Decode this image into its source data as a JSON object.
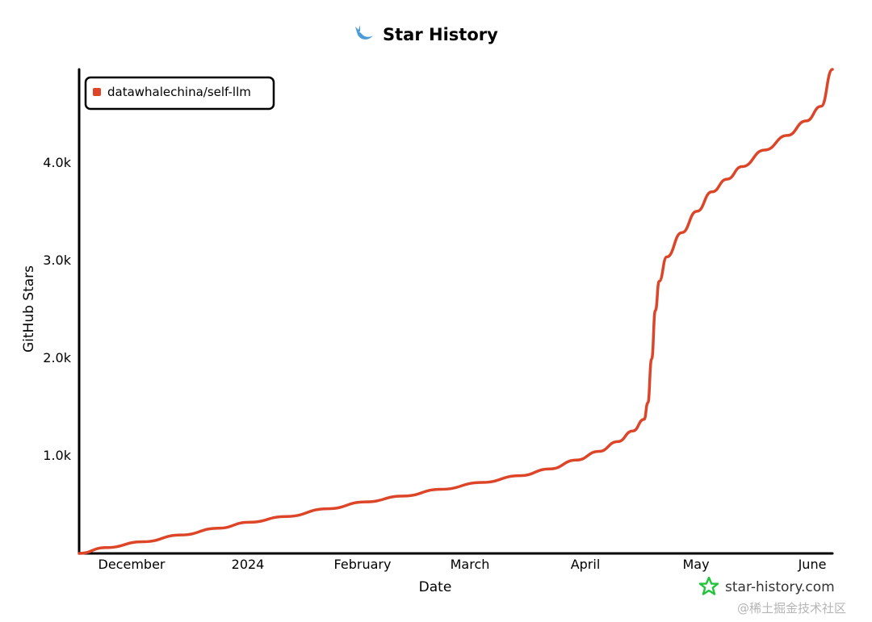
{
  "title": "Star History",
  "brand": "star-history.com",
  "watermark": "@稀土掘金技术社区",
  "colors": {
    "series": "#dd4528",
    "axis": "#000000",
    "logo_blue": "#4b9cd8",
    "brand_green": "#21c33a"
  },
  "icons": {
    "title_logo": "whale-icon",
    "brand_logo": "star-outline-icon"
  },
  "chart_data": {
    "type": "line",
    "xlabel": "Date",
    "ylabel": "GitHub Stars",
    "x_tick_labels": [
      "December",
      "2024",
      "February",
      "March",
      "April",
      "May",
      "June"
    ],
    "y_tick_labels": [
      "1.0k",
      "2.0k",
      "3.0k",
      "4.0k"
    ],
    "y_ticks": [
      1000,
      2000,
      3000,
      4000
    ],
    "ylim": [
      0,
      4980
    ],
    "xlim": [
      "2023-11-21",
      "2024-06-08"
    ],
    "grid": false,
    "legend_position": "top-left",
    "series": [
      {
        "name": "datawhalechina/self-llm",
        "points": [
          [
            "2023-11-21",
            0
          ],
          [
            "2023-11-28",
            60
          ],
          [
            "2023-12-08",
            120
          ],
          [
            "2023-12-18",
            190
          ],
          [
            "2023-12-28",
            260
          ],
          [
            "2024-01-05",
            320
          ],
          [
            "2024-01-15",
            380
          ],
          [
            "2024-01-26",
            460
          ],
          [
            "2024-02-05",
            530
          ],
          [
            "2024-02-15",
            590
          ],
          [
            "2024-02-25",
            660
          ],
          [
            "2024-03-07",
            730
          ],
          [
            "2024-03-17",
            800
          ],
          [
            "2024-03-25",
            870
          ],
          [
            "2024-04-01",
            960
          ],
          [
            "2024-04-07",
            1050
          ],
          [
            "2024-04-12",
            1150
          ],
          [
            "2024-04-16",
            1260
          ],
          [
            "2024-04-19",
            1380
          ],
          [
            "2024-04-20",
            1550
          ],
          [
            "2024-04-21",
            2000
          ],
          [
            "2024-04-22",
            2500
          ],
          [
            "2024-04-23",
            2800
          ],
          [
            "2024-04-25",
            3050
          ],
          [
            "2024-04-29",
            3300
          ],
          [
            "2024-05-03",
            3520
          ],
          [
            "2024-05-07",
            3720
          ],
          [
            "2024-05-11",
            3850
          ],
          [
            "2024-05-15",
            3980
          ],
          [
            "2024-05-21",
            4150
          ],
          [
            "2024-05-27",
            4300
          ],
          [
            "2024-06-01",
            4450
          ],
          [
            "2024-06-05",
            4600
          ],
          [
            "2024-06-08",
            4980
          ]
        ]
      }
    ]
  }
}
